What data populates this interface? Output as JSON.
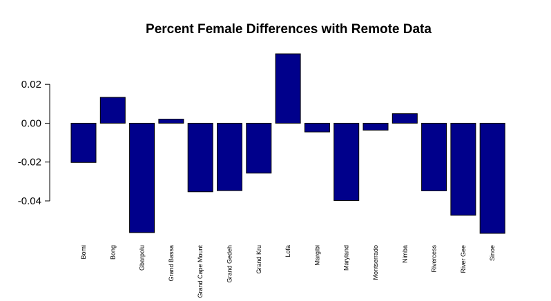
{
  "chart_data": {
    "type": "bar",
    "title": "Percent Female Differences with Remote Data",
    "xlabel": "",
    "ylabel": "",
    "categories": [
      "Bomi",
      "Bong",
      "Gbarpolu",
      "Grand Bassa",
      "Grand Cape Mount",
      "Grand Gedeh",
      "Grand Kru",
      "Lofa",
      "Margibi",
      "Maryland",
      "Montserrado",
      "Nimba",
      "Rivercess",
      "River Gee",
      "Sinoe"
    ],
    "values": [
      -0.0202,
      0.0133,
      -0.0563,
      0.0021,
      -0.0353,
      -0.0347,
      -0.0257,
      0.0357,
      -0.0045,
      -0.0398,
      -0.0036,
      0.0049,
      -0.0348,
      -0.0474,
      -0.0567
    ],
    "yticks": [
      0.02,
      0.0,
      -0.02,
      -0.04
    ],
    "ytick_labels": [
      "0.02",
      "0.00",
      "-0.02",
      "-0.04"
    ],
    "ylim": [
      -0.0567,
      0.0357
    ],
    "bar_color": "#00008B",
    "grid": false,
    "legend": "none"
  }
}
